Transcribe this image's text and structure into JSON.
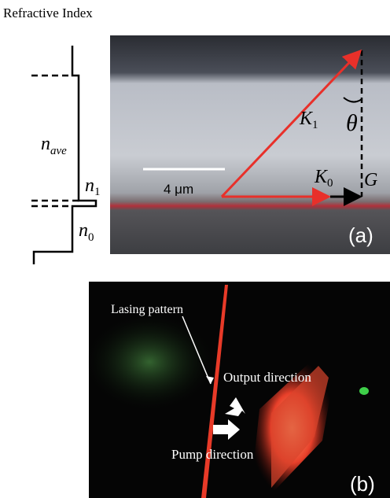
{
  "panel_a": {
    "label": "(a)",
    "axis_title": "Refractive Index",
    "profile_labels": [
      {
        "base": "n",
        "sub": "ave"
      },
      {
        "base": "n",
        "sub": "1"
      },
      {
        "base": "n",
        "sub": "0"
      }
    ],
    "scale_bar": "4 μm",
    "vectors": [
      {
        "base": "K",
        "sub": "1"
      },
      {
        "base": "K",
        "sub": "0"
      },
      {
        "base": "G"
      }
    ],
    "angle": "θ"
  },
  "panel_b": {
    "label": "(b)",
    "annotations": [
      "Lasing pattern",
      "Output direction",
      "Pump direction"
    ]
  }
}
